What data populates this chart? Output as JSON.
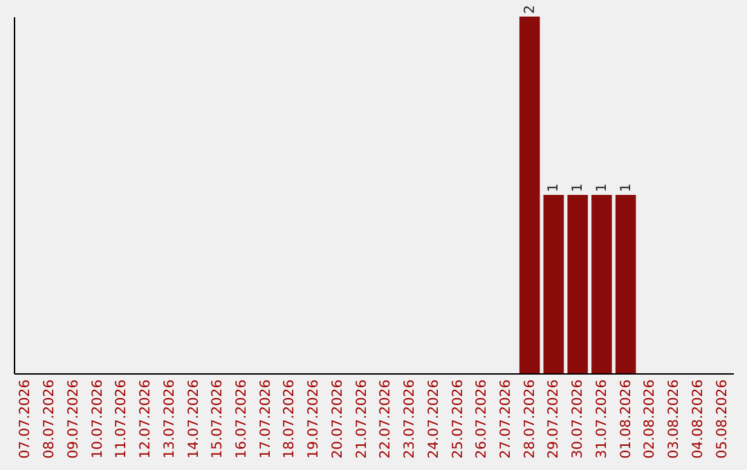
{
  "chart_data": {
    "type": "bar",
    "categories": [
      "07.07.2026",
      "08.07.2026",
      "09.07.2026",
      "10.07.2026",
      "11.07.2026",
      "12.07.2026",
      "13.07.2026",
      "14.07.2026",
      "15.07.2026",
      "16.07.2026",
      "17.07.2026",
      "18.07.2026",
      "19.07.2026",
      "20.07.2026",
      "21.07.2026",
      "22.07.2026",
      "23.07.2026",
      "24.07.2026",
      "25.07.2026",
      "26.07.2026",
      "27.07.2026",
      "28.07.2026",
      "29.07.2026",
      "30.07.2026",
      "31.07.2026",
      "01.08.2026",
      "02.08.2026",
      "03.08.2026",
      "04.08.2026",
      "05.08.2026"
    ],
    "values": [
      null,
      null,
      null,
      null,
      null,
      null,
      null,
      null,
      null,
      null,
      null,
      null,
      null,
      null,
      null,
      null,
      null,
      null,
      null,
      null,
      null,
      2,
      1,
      1,
      1,
      1,
      null,
      null,
      null,
      null
    ],
    "color": "#8b0a0a",
    "data_labels": true,
    "tick_labels": "x"
  }
}
